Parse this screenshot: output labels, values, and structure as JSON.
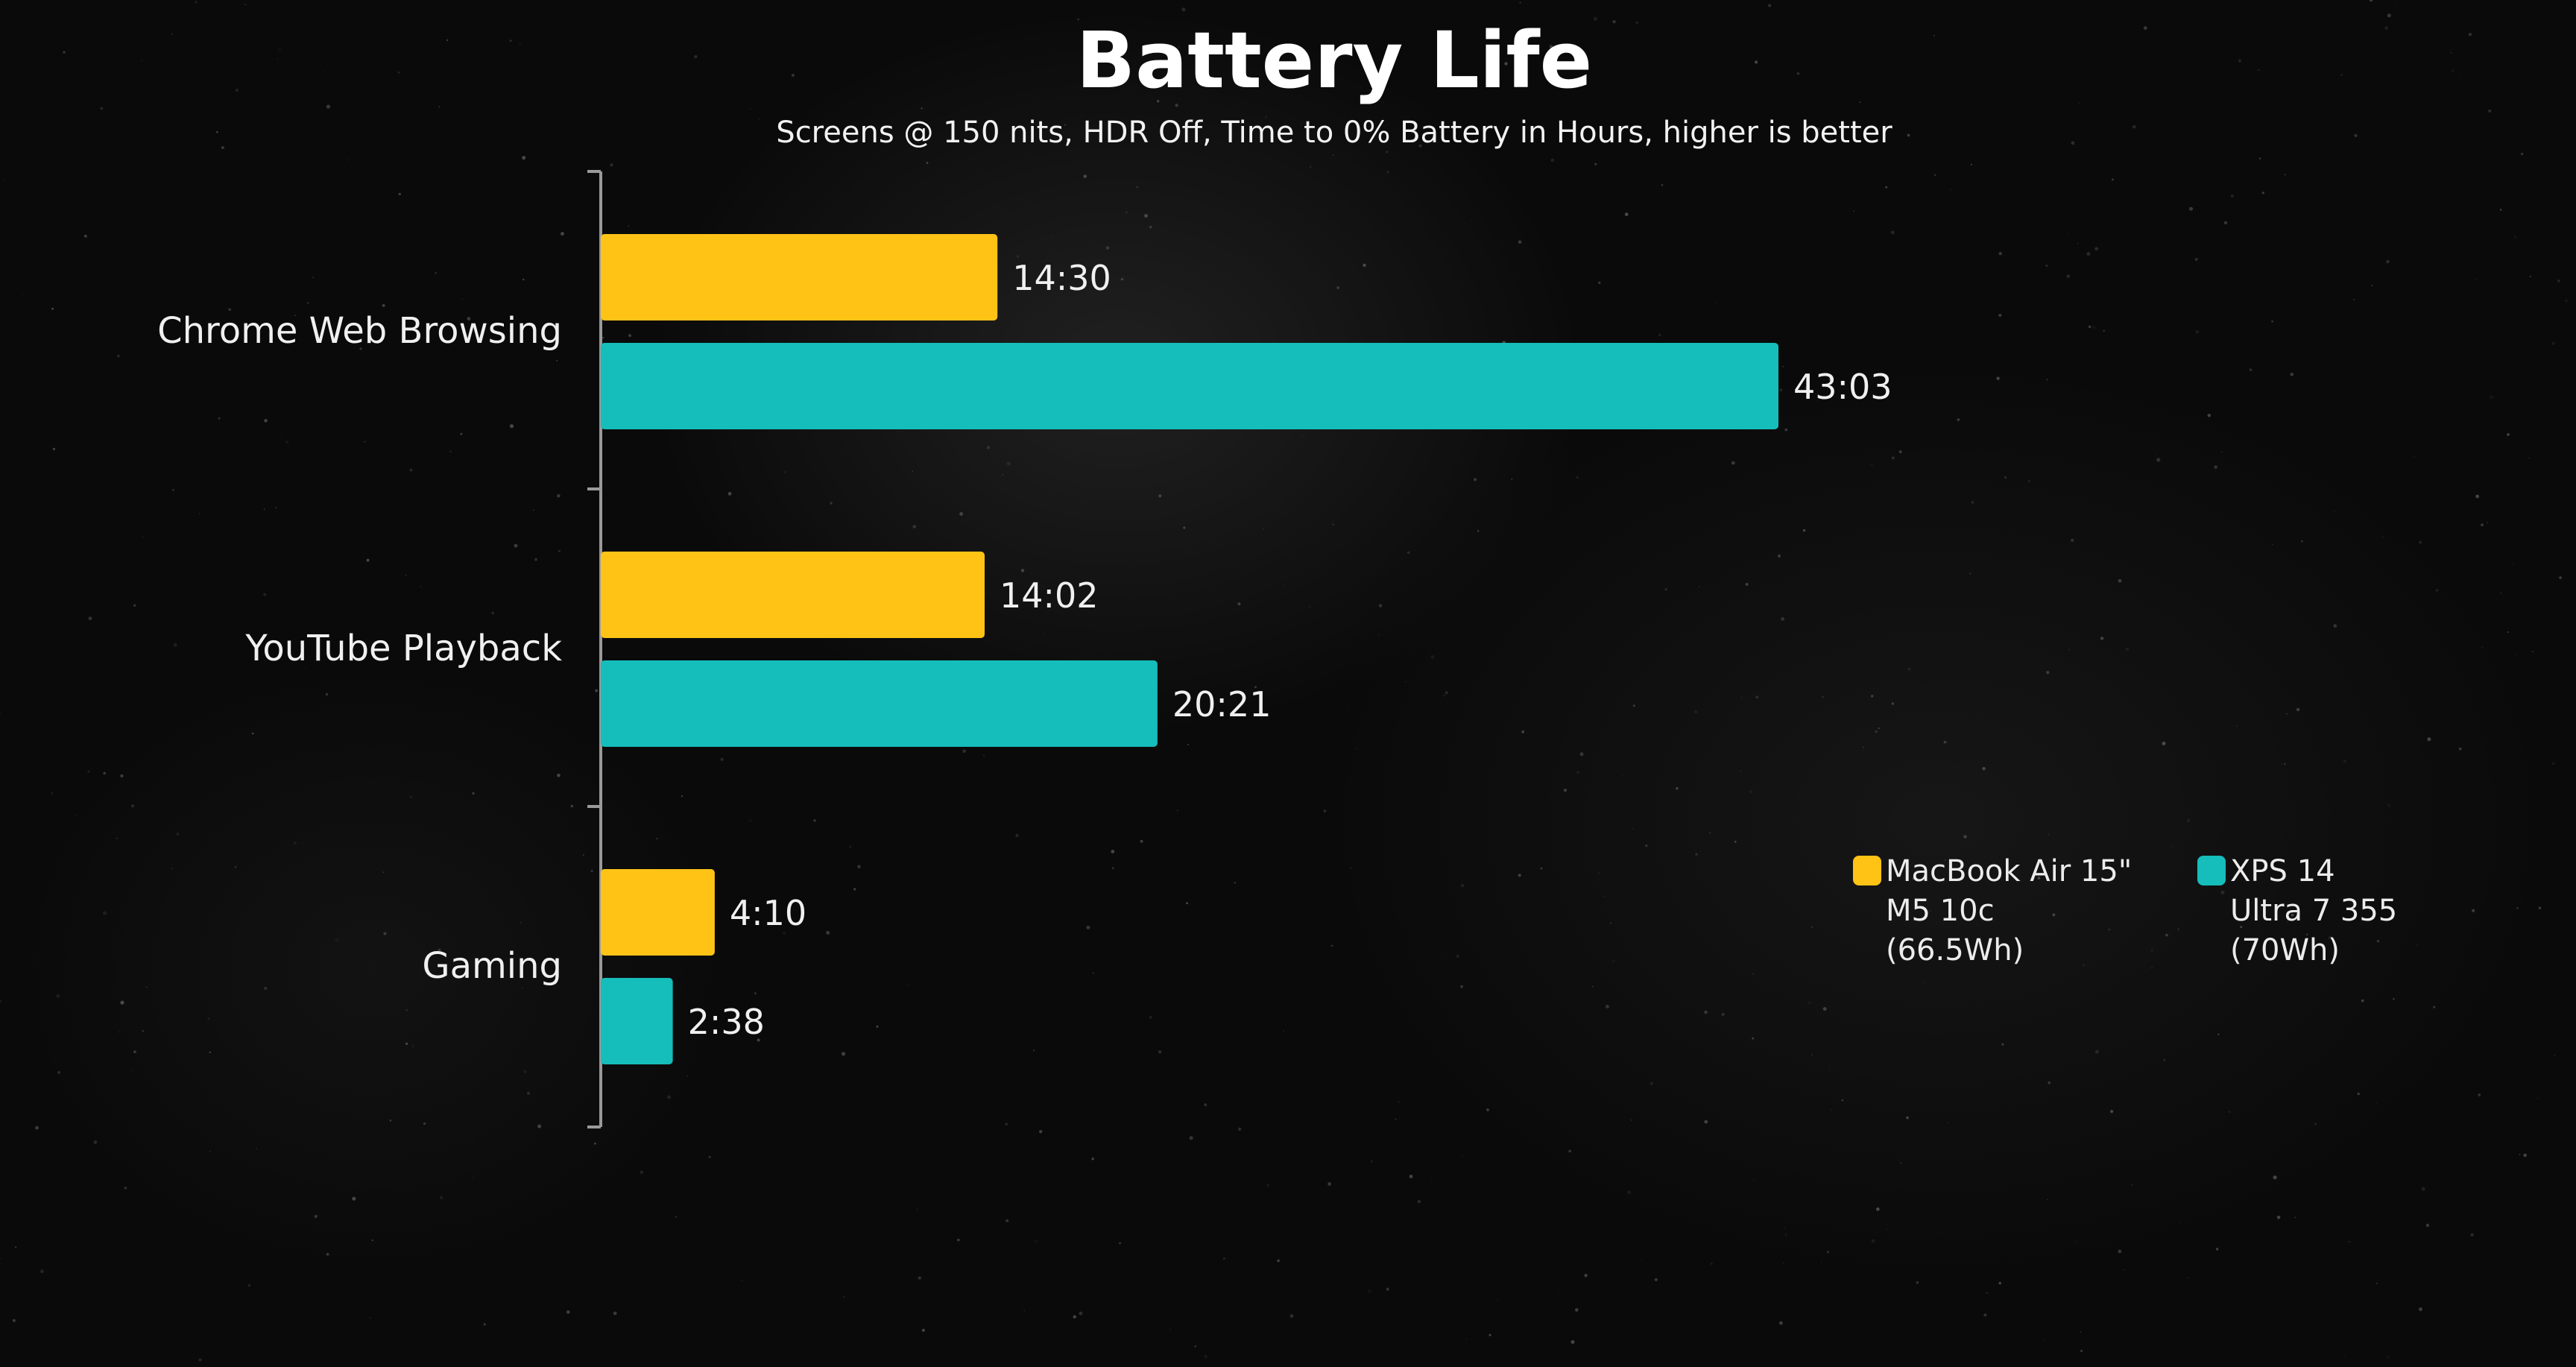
{
  "chart_data": {
    "type": "bar",
    "orientation": "horizontal",
    "title": "Battery Life",
    "subtitle": "Screens @ 150 nits, HDR Off, Time to 0% Battery in Hours, higher is better",
    "xlabel": "",
    "ylabel": "",
    "unit": "hours",
    "xlim": [
      0,
      43.05
    ],
    "grid": false,
    "legend_position": "right",
    "categories": [
      "Chrome Web Browsing",
      "YouTube Playback",
      "Gaming"
    ],
    "series": [
      {
        "name": "MacBook Air 15\" M5 10c (66.5Wh)",
        "legend_lines": [
          "MacBook Air 15\"",
          "M5 10c",
          "(66.5Wh)"
        ],
        "color": "#FFC316",
        "values": [
          14.5,
          14.033,
          4.167
        ],
        "labels": [
          "14:30",
          "14:02",
          "4:10"
        ]
      },
      {
        "name": "XPS 14 Ultra 7 355 (70Wh)",
        "legend_lines": [
          "XPS 14",
          "Ultra 7 355",
          "(70Wh)"
        ],
        "color": "#15BDBB",
        "values": [
          43.05,
          20.35,
          2.633
        ],
        "labels": [
          "43:03",
          "20:21",
          "2:38"
        ]
      }
    ]
  }
}
